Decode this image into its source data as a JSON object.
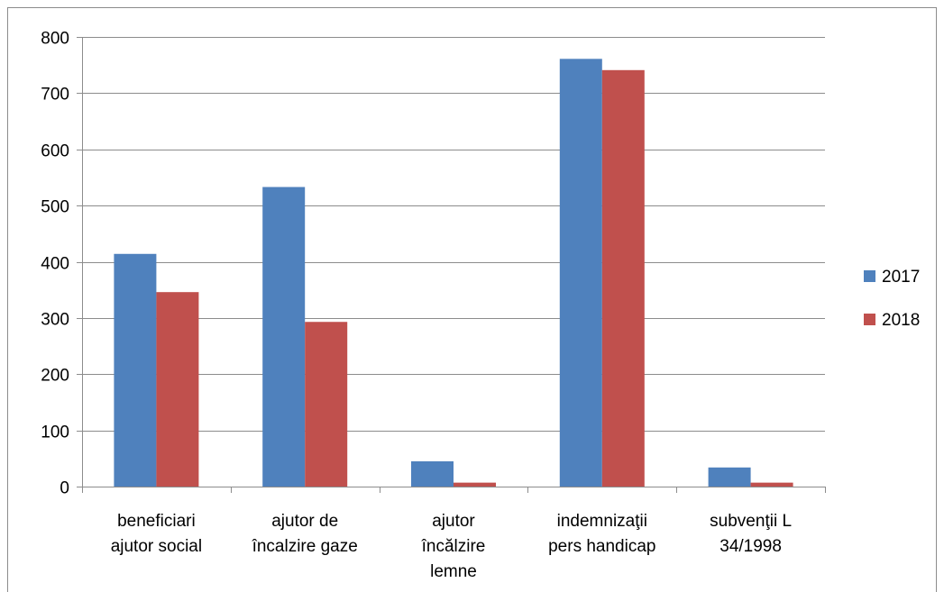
{
  "chart_data": {
    "type": "bar",
    "title": "",
    "xlabel": "",
    "ylabel": "",
    "ylim": [
      0,
      800
    ],
    "yticks": [
      0,
      100,
      200,
      300,
      400,
      500,
      600,
      700,
      800
    ],
    "grid": true,
    "legend_position": "right",
    "categories": [
      [
        "beneficiari",
        "ajutor social"
      ],
      [
        "ajutor de",
        "încalzire gaze"
      ],
      [
        "ajutor",
        "încălzire",
        "lemne"
      ],
      [
        "indemnizaţii",
        "pers handicap"
      ],
      [
        "subvenţii L",
        "34/1998"
      ]
    ],
    "series": [
      {
        "name": "2017",
        "color": "#4f81bd",
        "values": [
          414,
          533,
          45,
          761,
          34
        ]
      },
      {
        "name": "2018",
        "color": "#c0504d",
        "values": [
          346,
          293,
          7,
          741,
          7
        ]
      }
    ]
  }
}
